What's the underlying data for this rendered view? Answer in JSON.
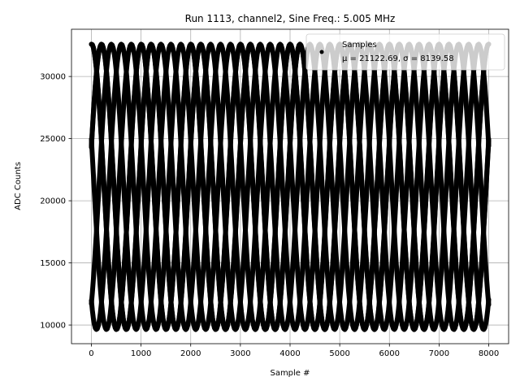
{
  "chart_data": {
    "type": "scatter",
    "title": "Run 1113, channel2, Sine Freq.: 5.005 MHz",
    "xlabel": "Sample #",
    "ylabel": "ADC Counts",
    "xlim": [
      -400,
      8400
    ],
    "ylim": [
      8500,
      33800
    ],
    "xticks": [
      0,
      1000,
      2000,
      3000,
      4000,
      5000,
      6000,
      7000,
      8000
    ],
    "yticks": [
      10000,
      15000,
      20000,
      25000,
      30000
    ],
    "grid": true,
    "legend": {
      "placement": "top-right",
      "entries": [
        {
          "label": "Samples",
          "stats": "μ = 21122.69, σ = 8139.58"
        }
      ]
    },
    "series": [
      {
        "marker": "dot",
        "color": "#000000",
        "sine_model": {
          "mean": 21120,
          "amplitude": 11480,
          "period_samples": 999.0,
          "phases_at_x0": [
            1.54,
            0.29,
            -0.96,
            -2.22,
            2.8,
            1.53,
            0.28
          ]
        },
        "x_range": [
          0,
          8000
        ],
        "values_at_x0": [
          32450,
          30350,
          27900,
          22950,
          19350,
          14350,
          11750,
          9700
        ]
      }
    ]
  }
}
